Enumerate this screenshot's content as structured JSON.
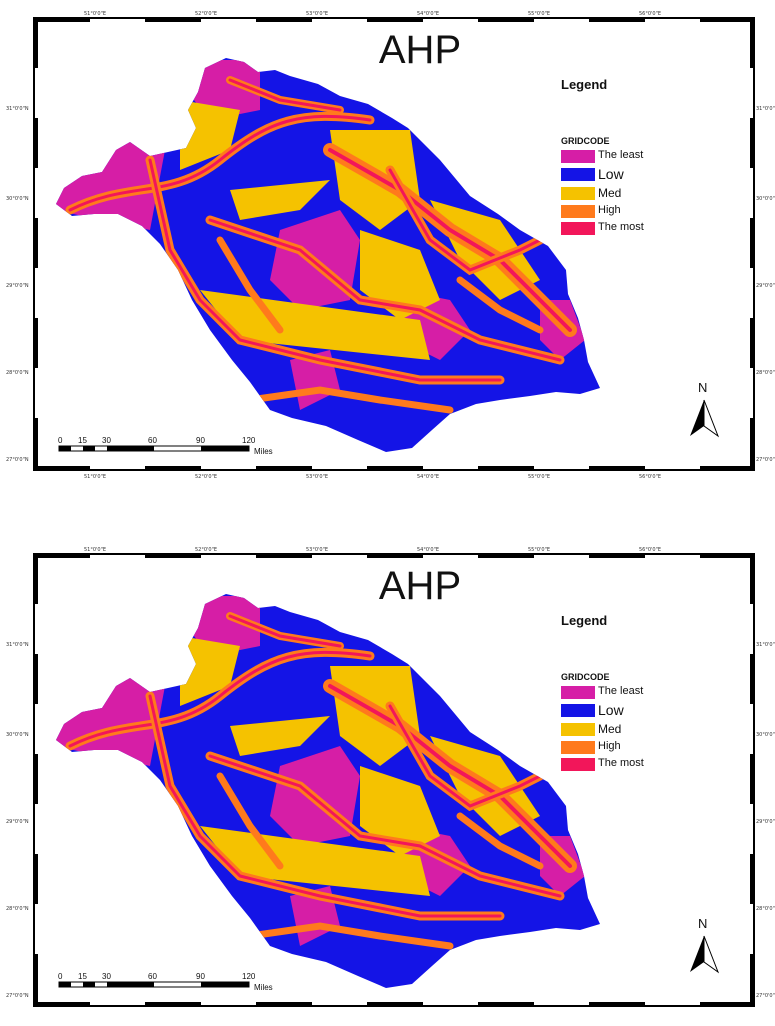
{
  "maps": [
    {
      "title": "AHP",
      "legend": {
        "title": "Legend",
        "field": "GRIDCODE",
        "classes": [
          {
            "label": "The least",
            "color": "#d61ea6"
          },
          {
            "label": "Low",
            "color": "#1414e6"
          },
          {
            "label": "Med",
            "color": "#f5c200"
          },
          {
            "label": "High",
            "color": "#ff7a1c"
          },
          {
            "label": "The most",
            "color": "#f2165a"
          }
        ]
      },
      "north_label": "N",
      "scale": {
        "ticks": [
          "0",
          "15",
          "30",
          "60",
          "90",
          "120"
        ],
        "unit": "Miles"
      },
      "lon_labels": [
        "51°0'0\"E",
        "52°0'0\"E",
        "53°0'0\"E",
        "54°0'0\"E",
        "55°0'0\"E",
        "56°0'0\"E"
      ],
      "lat_labels": [
        "31°0'0\"N",
        "30°0'0\"N",
        "29°0'0\"N",
        "28°0'0\"N",
        "27°0'0\"N"
      ]
    },
    {
      "title": "AHP",
      "legend": {
        "title": "Legend",
        "field": "GRIDCODE",
        "classes": [
          {
            "label": "The least",
            "color": "#d61ea6"
          },
          {
            "label": "Low",
            "color": "#1414e6"
          },
          {
            "label": "Med",
            "color": "#f5c200"
          },
          {
            "label": "High",
            "color": "#ff7a1c"
          },
          {
            "label": "The most",
            "color": "#f2165a"
          }
        ]
      },
      "north_label": "N",
      "scale": {
        "ticks": [
          "0",
          "15",
          "30",
          "60",
          "90",
          "120"
        ],
        "unit": "Miles"
      },
      "lon_labels": [
        "51°0'0\"E",
        "52°0'0\"E",
        "53°0'0\"E",
        "54°0'0\"E",
        "55°0'0\"E",
        "56°0'0\"E"
      ],
      "lat_labels": [
        "31°0'0\"N",
        "30°0'0\"N",
        "29°0'0\"N",
        "28°0'0\"N",
        "27°0'0\"N"
      ]
    }
  ]
}
